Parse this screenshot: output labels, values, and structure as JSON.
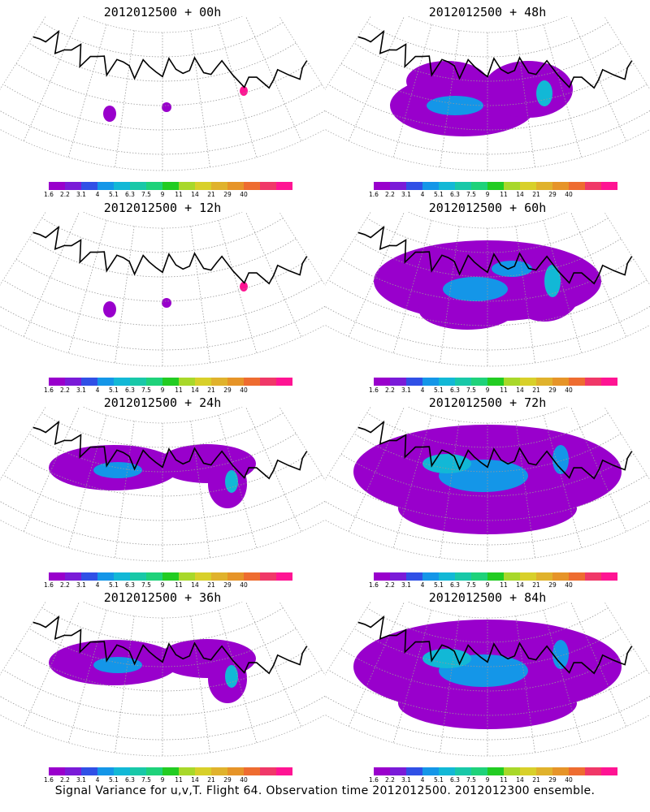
{
  "panels": [
    {
      "title": "2012012500 + 00h",
      "spread": 0
    },
    {
      "title": "2012012500 + 48h",
      "spread": 2
    },
    {
      "title": "2012012500 + 12h",
      "spread": 0
    },
    {
      "title": "2012012500 + 60h",
      "spread": 3
    },
    {
      "title": "2012012500 + 24h",
      "spread": 1
    },
    {
      "title": "2012012500 + 72h",
      "spread": 4
    },
    {
      "title": "2012012500 + 36h",
      "spread": 1
    },
    {
      "title": "2012012500 + 84h",
      "spread": 5
    }
  ],
  "colorbar": {
    "labels": [
      "1.6",
      "2.2",
      "3.1",
      "4",
      "5.1",
      "6.3",
      "7.5",
      "9",
      "11",
      "14",
      "21",
      "29",
      "40"
    ],
    "colors": [
      "#9900cc",
      "#7a1bd8",
      "#3050e6",
      "#1496e8",
      "#12b8d6",
      "#18c8a8",
      "#1ed27a",
      "#22cc22",
      "#a8d82a",
      "#d8d02a",
      "#e0b22c",
      "#e69428",
      "#ee6c30",
      "#f03868",
      "#ff1493"
    ]
  },
  "caption": "Signal Variance for u,v,T. Flight 64. Observation time 2012012500. 2012012300 ensemble."
}
